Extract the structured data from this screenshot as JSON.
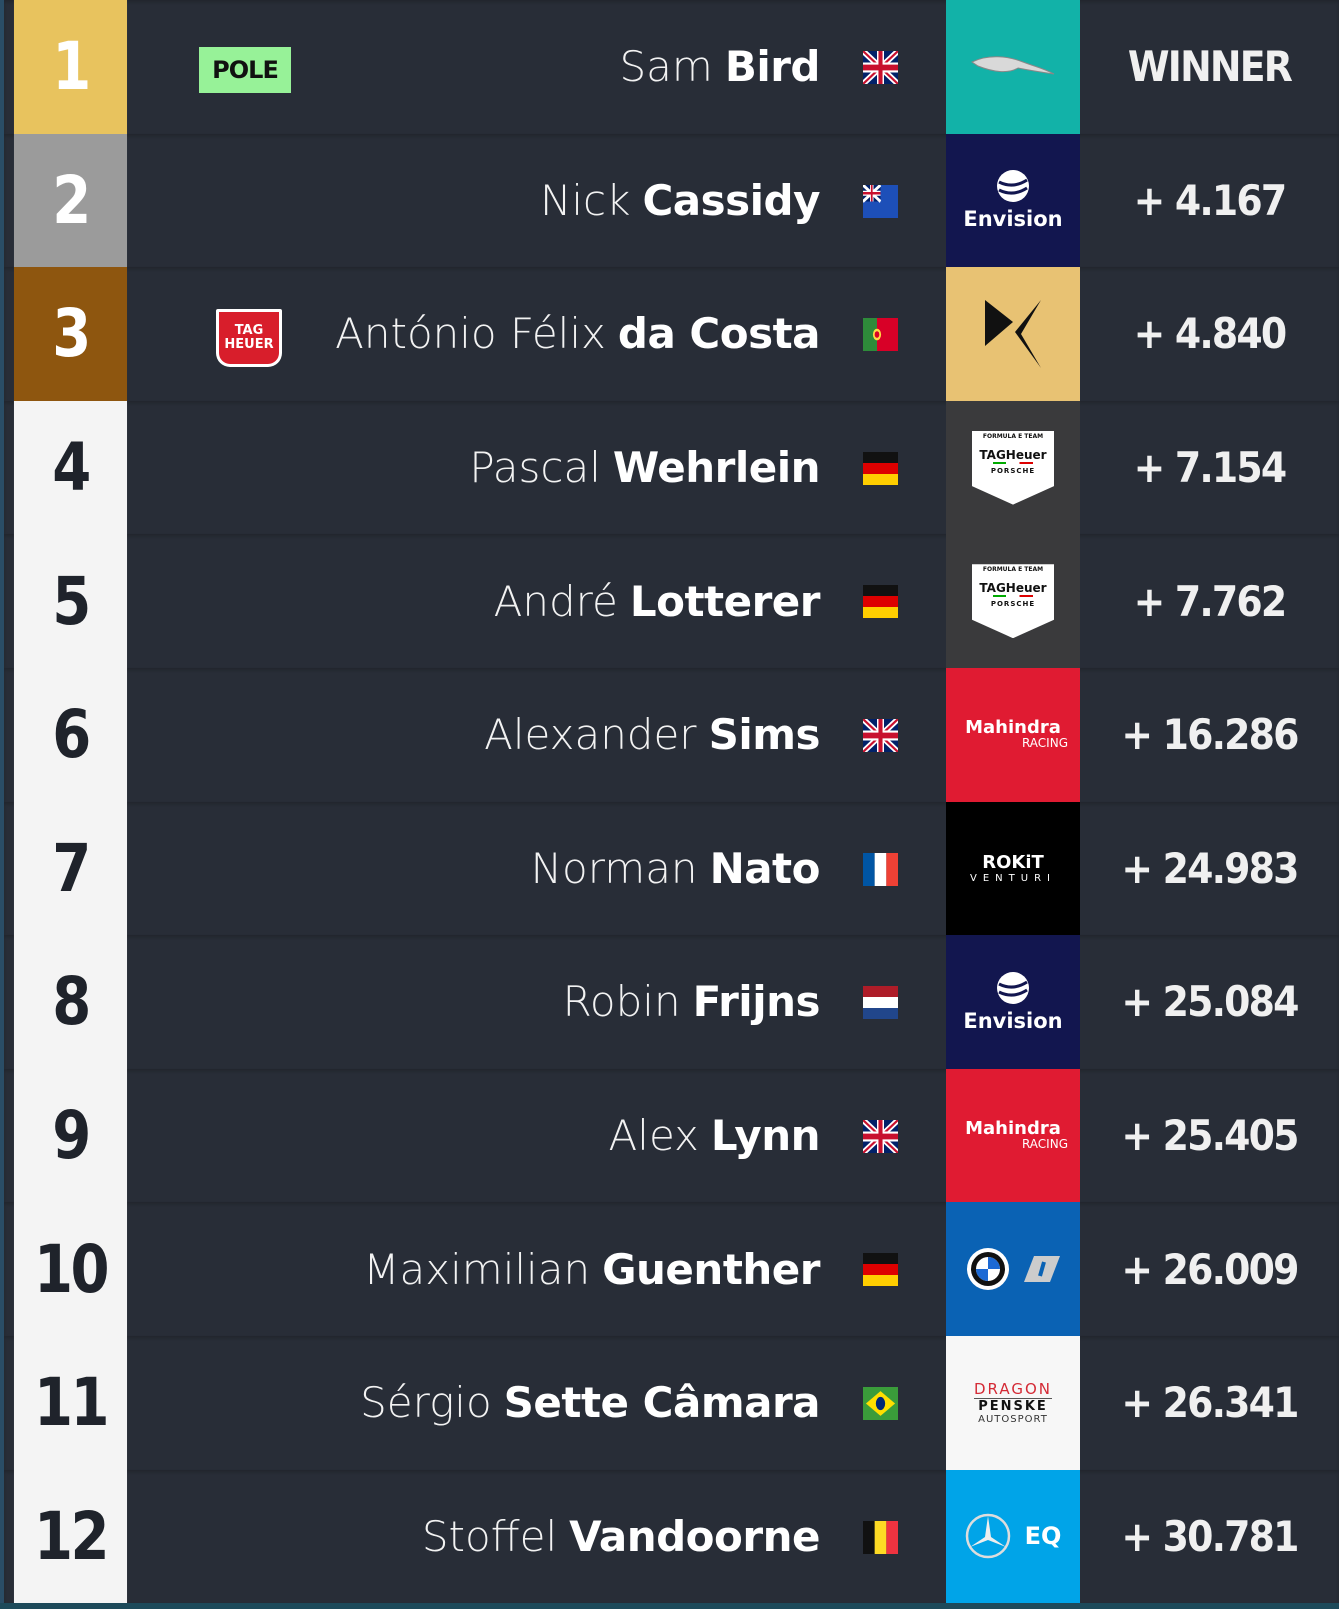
{
  "results": [
    {
      "position": "1",
      "first": "Sam",
      "last": "Bird",
      "country": "GB",
      "team": "Jaguar",
      "team_label": "",
      "team_color": "#12b2a8",
      "gap": "WINNER",
      "badge": "POLE"
    },
    {
      "position": "2",
      "first": "Nick",
      "last": "Cassidy",
      "country": "NZ",
      "team": "Envision",
      "team_label": "Envision",
      "team_color": "#12164f",
      "gap": "+ 4.167"
    },
    {
      "position": "3",
      "first": "António Félix",
      "last": "da Costa",
      "country": "PT",
      "team": "DS Techeetah",
      "team_label": "",
      "team_color": "#e8c273",
      "gap": "+ 4.840",
      "badge_logo": "TAG HEUER"
    },
    {
      "position": "4",
      "first": "Pascal",
      "last": "Wehrlein",
      "country": "DE",
      "team": "TAG Heuer Porsche",
      "team_label": "TAGHeuer",
      "team_sub": "PORSCHE",
      "team_top": "FORMULA E TEAM",
      "team_color": "#3a3a3c",
      "gap": "+ 7.154"
    },
    {
      "position": "5",
      "first": "André",
      "last": "Lotterer",
      "country": "DE",
      "team": "TAG Heuer Porsche",
      "team_label": "TAGHeuer",
      "team_sub": "PORSCHE",
      "team_top": "FORMULA E TEAM",
      "team_color": "#3a3a3c",
      "gap": "+ 7.762"
    },
    {
      "position": "6",
      "first": "Alexander",
      "last": "Sims",
      "country": "GB",
      "team": "Mahindra",
      "team_label": "Mahindra",
      "team_sub": "RACING",
      "team_color": "#e01b32",
      "gap": "+ 16.286"
    },
    {
      "position": "7",
      "first": "Norman",
      "last": "Nato",
      "country": "FR",
      "team": "ROKiT Venturi",
      "team_label": "ROKiT",
      "team_sub": "VENTURI",
      "team_color": "#000000",
      "gap": "+ 24.983"
    },
    {
      "position": "8",
      "first": "Robin",
      "last": "Frijns",
      "country": "NL",
      "team": "Envision",
      "team_label": "Envision",
      "team_color": "#12164f",
      "gap": "+ 25.084"
    },
    {
      "position": "9",
      "first": "Alex",
      "last": "Lynn",
      "country": "GB",
      "team": "Mahindra",
      "team_label": "Mahindra",
      "team_sub": "RACING",
      "team_color": "#e01b32",
      "gap": "+ 25.405"
    },
    {
      "position": "10",
      "first": "Maximilian",
      "last": "Guenther",
      "country": "DE",
      "team": "BMW i",
      "team_label": "",
      "team_color": "#0a62b4",
      "gap": "+ 26.009"
    },
    {
      "position": "11",
      "first": "Sérgio",
      "last": "Sette Câmara",
      "country": "BR",
      "team": "Dragon Penske",
      "team_label": "DRAGON",
      "team_sub": "PENSKE",
      "team_top": "AUTOSPORT",
      "team_color": "#f7f7f7",
      "gap": "+ 26.341"
    },
    {
      "position": "12",
      "first": "Stoffel",
      "last": "Vandoorne",
      "country": "BE",
      "team": "Mercedes EQ",
      "team_label": "EQ",
      "team_color": "#00a4e8",
      "gap": "+ 30.781"
    }
  ]
}
